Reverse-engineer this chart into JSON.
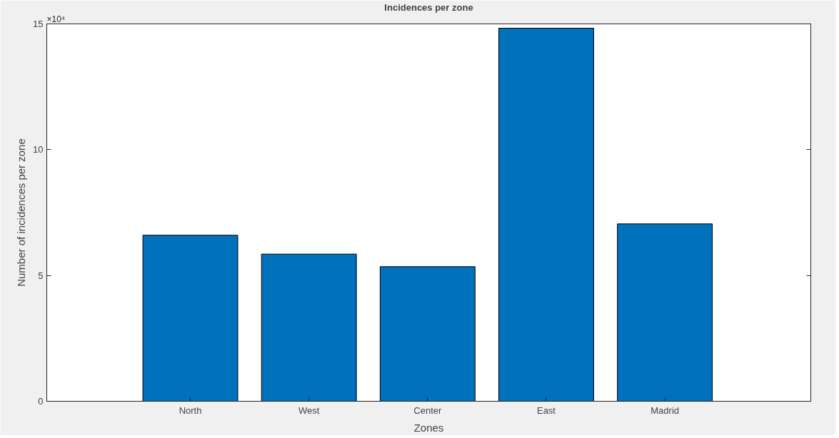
{
  "chart_data": {
    "type": "bar",
    "title": "Incidences per zone",
    "xlabel": "Zones",
    "ylabel": "Number of incidences per zone",
    "categories": [
      "North",
      "West",
      "Center",
      "East",
      "Madrid"
    ],
    "values": [
      6.6,
      5.85,
      5.35,
      14.83,
      7.05
    ],
    "color": "#0072bd",
    "ylim": [
      0,
      15
    ],
    "yticks": [
      0,
      5,
      10,
      15
    ],
    "annotations": [
      "×10⁴"
    ],
    "grid": false
  }
}
